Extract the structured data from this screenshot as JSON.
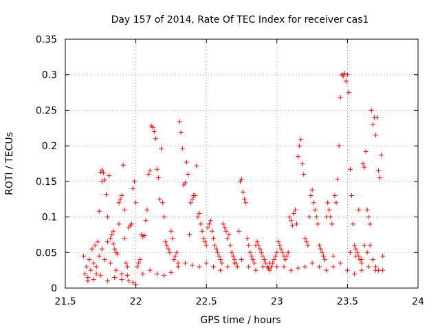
{
  "chart_data": {
    "type": "scatter",
    "title": "Day 157 of 2014, Rate Of TEC Index for receiver cas1",
    "xlabel": "GPS time / hours",
    "ylabel": "ROTI / TECUs",
    "xlim": [
      21.5,
      24
    ],
    "ylim": [
      0,
      0.35
    ],
    "xticks": [
      21.5,
      22,
      22.5,
      23,
      23.5,
      24
    ],
    "xtick_labels": [
      "21.5",
      "22",
      "22.5",
      "23",
      "23.5",
      "24"
    ],
    "yticks": [
      0,
      0.05,
      0.1,
      0.15,
      0.2,
      0.25,
      0.3,
      0.35
    ],
    "ytick_labels": [
      "0",
      "0.05",
      "0.1",
      "0.15",
      "0.2",
      "0.25",
      "0.3",
      "0.35"
    ],
    "grid": true,
    "marker": "+",
    "series": [
      {
        "name": "ROTI",
        "color": "#ff0000",
        "points": [
          [
            21.63,
            0.045
          ],
          [
            21.64,
            0.02
          ],
          [
            21.65,
            0.03
          ],
          [
            21.66,
            0.015
          ],
          [
            21.67,
            0.04
          ],
          [
            21.68,
            0.025
          ],
          [
            21.69,
            0.055
          ],
          [
            21.7,
            0.035
          ],
          [
            21.71,
            0.06
          ],
          [
            21.72,
            0.02
          ],
          [
            21.73,
            0.065
          ],
          [
            21.74,
            0.045
          ],
          [
            21.74,
            0.108
          ],
          [
            21.75,
            0.163
          ],
          [
            21.76,
            0.166
          ],
          [
            21.77,
            0.162
          ],
          [
            21.76,
            0.15
          ],
          [
            21.78,
            0.152
          ],
          [
            21.79,
            0.132
          ],
          [
            21.8,
            0.1
          ],
          [
            21.81,
            0.158
          ],
          [
            21.82,
            0.07
          ],
          [
            21.83,
            0.075
          ],
          [
            21.84,
            0.062
          ],
          [
            21.85,
            0.055
          ],
          [
            21.86,
            0.05
          ],
          [
            21.87,
            0.048
          ],
          [
            21.88,
            0.12
          ],
          [
            21.89,
            0.125
          ],
          [
            21.9,
            0.13
          ],
          [
            21.91,
            0.173
          ],
          [
            21.92,
            0.11
          ],
          [
            21.93,
            0.035
          ],
          [
            21.94,
            0.03
          ],
          [
            21.95,
            0.085
          ],
          [
            21.96,
            0.088
          ],
          [
            21.97,
            0.09
          ],
          [
            21.98,
            0.14
          ],
          [
            21.99,
            0.15
          ],
          [
            22.0,
            0.12
          ],
          [
            21.66,
            0.01
          ],
          [
            21.7,
            0.012
          ],
          [
            21.75,
            0.018
          ],
          [
            21.8,
            0.01
          ],
          [
            21.85,
            0.015
          ],
          [
            21.9,
            0.012
          ],
          [
            21.95,
            0.01
          ],
          [
            21.98,
            0.008
          ],
          [
            22.0,
            0.005
          ],
          [
            21.72,
            0.03
          ],
          [
            21.78,
            0.04
          ],
          [
            21.82,
            0.035
          ],
          [
            21.86,
            0.025
          ],
          [
            21.9,
            0.02
          ],
          [
            21.94,
            0.018
          ],
          [
            21.76,
            0.055
          ],
          [
            21.8,
            0.065
          ],
          [
            21.84,
            0.08
          ],
          [
            21.88,
            0.09
          ],
          [
            21.92,
            0.07
          ],
          [
            22.01,
            0.03
          ],
          [
            22.02,
            0.035
          ],
          [
            22.03,
            0.04
          ],
          [
            22.04,
            0.075
          ],
          [
            22.05,
            0.072
          ],
          [
            22.06,
            0.074
          ],
          [
            22.07,
            0.095
          ],
          [
            22.08,
            0.11
          ],
          [
            22.09,
            0.16
          ],
          [
            22.1,
            0.165
          ],
          [
            22.11,
            0.228
          ],
          [
            22.12,
            0.226
          ],
          [
            22.13,
            0.22
          ],
          [
            22.14,
            0.21
          ],
          [
            22.15,
            0.167
          ],
          [
            22.16,
            0.155
          ],
          [
            22.17,
            0.125
          ],
          [
            22.18,
            0.196
          ],
          [
            22.19,
            0.12
          ],
          [
            22.2,
            0.1
          ],
          [
            22.21,
            0.065
          ],
          [
            22.22,
            0.06
          ],
          [
            22.23,
            0.055
          ],
          [
            22.24,
            0.05
          ],
          [
            22.25,
            0.08
          ],
          [
            22.26,
            0.07
          ],
          [
            22.27,
            0.04
          ],
          [
            22.28,
            0.045
          ],
          [
            22.29,
            0.05
          ],
          [
            22.3,
            0.035
          ],
          [
            22.31,
            0.234
          ],
          [
            22.32,
            0.219
          ],
          [
            22.33,
            0.196
          ],
          [
            22.34,
            0.145
          ],
          [
            22.35,
            0.148
          ],
          [
            22.36,
            0.177
          ],
          [
            22.37,
            0.16
          ],
          [
            22.38,
            0.075
          ],
          [
            22.39,
            0.12
          ],
          [
            22.4,
            0.125
          ],
          [
            22.41,
            0.13
          ],
          [
            22.42,
            0.13
          ],
          [
            22.43,
            0.172
          ],
          [
            22.44,
            0.1
          ],
          [
            22.45,
            0.105
          ],
          [
            22.46,
            0.09
          ],
          [
            22.47,
            0.08
          ],
          [
            22.48,
            0.07
          ],
          [
            22.49,
            0.065
          ],
          [
            22.5,
            0.06
          ],
          [
            22.05,
            0.02
          ],
          [
            22.1,
            0.025
          ],
          [
            22.15,
            0.02
          ],
          [
            22.2,
            0.018
          ],
          [
            22.25,
            0.022
          ],
          [
            22.3,
            0.03
          ],
          [
            22.35,
            0.035
          ],
          [
            22.4,
            0.032
          ],
          [
            22.45,
            0.03
          ],
          [
            22.5,
            0.035
          ],
          [
            22.51,
            0.085
          ],
          [
            22.52,
            0.09
          ],
          [
            22.53,
            0.095
          ],
          [
            22.54,
            0.08
          ],
          [
            22.55,
            0.07
          ],
          [
            22.56,
            0.06
          ],
          [
            22.57,
            0.055
          ],
          [
            22.58,
            0.05
          ],
          [
            22.59,
            0.045
          ],
          [
            22.6,
            0.04
          ],
          [
            22.61,
            0.035
          ],
          [
            22.62,
            0.09
          ],
          [
            22.63,
            0.085
          ],
          [
            22.64,
            0.08
          ],
          [
            22.65,
            0.07
          ],
          [
            22.66,
            0.075
          ],
          [
            22.67,
            0.06
          ],
          [
            22.68,
            0.05
          ],
          [
            22.69,
            0.045
          ],
          [
            22.7,
            0.04
          ],
          [
            22.71,
            0.035
          ],
          [
            22.72,
            0.03
          ],
          [
            22.73,
            0.08
          ],
          [
            22.74,
            0.15
          ],
          [
            22.75,
            0.153
          ],
          [
            22.76,
            0.135
          ],
          [
            22.77,
            0.125
          ],
          [
            22.78,
            0.12
          ],
          [
            22.79,
            0.07
          ],
          [
            22.8,
            0.06
          ],
          [
            22.81,
            0.05
          ],
          [
            22.82,
            0.045
          ],
          [
            22.83,
            0.04
          ],
          [
            22.84,
            0.035
          ],
          [
            22.85,
            0.06
          ],
          [
            22.86,
            0.065
          ],
          [
            22.87,
            0.06
          ],
          [
            22.88,
            0.055
          ],
          [
            22.89,
            0.05
          ],
          [
            22.9,
            0.045
          ],
          [
            22.91,
            0.04
          ],
          [
            22.92,
            0.035
          ],
          [
            22.93,
            0.03
          ],
          [
            22.94,
            0.028
          ],
          [
            22.95,
            0.025
          ],
          [
            22.96,
            0.03
          ],
          [
            22.97,
            0.035
          ],
          [
            22.98,
            0.04
          ],
          [
            22.99,
            0.045
          ],
          [
            23.0,
            0.05
          ],
          [
            22.55,
            0.03
          ],
          [
            22.6,
            0.025
          ],
          [
            22.65,
            0.03
          ],
          [
            22.7,
            0.035
          ],
          [
            22.75,
            0.04
          ],
          [
            22.8,
            0.03
          ],
          [
            22.85,
            0.025
          ],
          [
            22.9,
            0.03
          ],
          [
            22.95,
            0.035
          ],
          [
            23.0,
            0.03
          ],
          [
            23.01,
            0.065
          ],
          [
            23.02,
            0.06
          ],
          [
            23.03,
            0.055
          ],
          [
            23.04,
            0.05
          ],
          [
            23.05,
            0.045
          ],
          [
            23.06,
            0.04
          ],
          [
            23.07,
            0.045
          ],
          [
            23.08,
            0.05
          ],
          [
            23.09,
            0.1
          ],
          [
            23.1,
            0.095
          ],
          [
            23.11,
            0.088
          ],
          [
            23.12,
            0.105
          ],
          [
            23.13,
            0.11
          ],
          [
            23.14,
            0.09
          ],
          [
            23.15,
            0.185
          ],
          [
            23.16,
            0.2
          ],
          [
            23.17,
            0.209
          ],
          [
            23.18,
            0.175
          ],
          [
            23.19,
            0.16
          ],
          [
            23.2,
            0.07
          ],
          [
            23.21,
            0.065
          ],
          [
            23.22,
            0.06
          ],
          [
            23.23,
            0.1
          ],
          [
            23.24,
            0.13
          ],
          [
            23.25,
            0.138
          ],
          [
            23.26,
            0.12
          ],
          [
            23.27,
            0.11
          ],
          [
            23.28,
            0.1
          ],
          [
            23.29,
            0.09
          ],
          [
            23.3,
            0.06
          ],
          [
            23.31,
            0.055
          ],
          [
            23.32,
            0.05
          ],
          [
            23.33,
            0.045
          ],
          [
            23.34,
            0.04
          ],
          [
            23.35,
            0.1
          ],
          [
            23.36,
            0.12
          ],
          [
            23.37,
            0.11
          ],
          [
            23.38,
            0.1
          ],
          [
            23.39,
            0.09
          ],
          [
            23.4,
            0.045
          ],
          [
            23.41,
            0.13
          ],
          [
            23.42,
            0.12
          ],
          [
            23.43,
            0.153
          ],
          [
            23.44,
            0.2
          ],
          [
            23.45,
            0.268
          ],
          [
            23.46,
            0.3
          ],
          [
            23.47,
            0.298
          ],
          [
            23.48,
            0.302
          ],
          [
            23.49,
            0.291
          ],
          [
            23.5,
            0.3
          ],
          [
            23.51,
            0.275
          ],
          [
            23.52,
            0.167
          ],
          [
            23.53,
            0.13
          ],
          [
            23.54,
            0.09
          ],
          [
            23.55,
            0.06
          ],
          [
            23.56,
            0.055
          ],
          [
            23.57,
            0.05
          ],
          [
            23.58,
            0.045
          ],
          [
            23.59,
            0.04
          ],
          [
            23.6,
            0.035
          ],
          [
            23.61,
            0.175
          ],
          [
            23.62,
            0.17
          ],
          [
            23.63,
            0.192
          ],
          [
            23.64,
            0.11
          ],
          [
            23.65,
            0.1
          ],
          [
            23.66,
            0.09
          ],
          [
            23.67,
            0.25
          ],
          [
            23.68,
            0.23
          ],
          [
            23.69,
            0.24
          ],
          [
            23.7,
            0.215
          ],
          [
            23.71,
            0.24
          ],
          [
            23.72,
            0.165
          ],
          [
            23.73,
            0.155
          ],
          [
            23.74,
            0.187
          ],
          [
            23.75,
            0.045
          ],
          [
            23.72,
            0.025
          ],
          [
            23.7,
            0.03
          ],
          [
            23.68,
            0.04
          ],
          [
            23.66,
            0.06
          ],
          [
            23.64,
            0.05
          ],
          [
            23.05,
            0.03
          ],
          [
            23.1,
            0.025
          ],
          [
            23.15,
            0.028
          ],
          [
            23.2,
            0.03
          ],
          [
            23.25,
            0.035
          ],
          [
            23.3,
            0.03
          ],
          [
            23.35,
            0.025
          ],
          [
            23.4,
            0.03
          ],
          [
            23.45,
            0.035
          ],
          [
            23.5,
            0.025
          ],
          [
            23.55,
            0.02
          ],
          [
            23.6,
            0.025
          ],
          [
            23.65,
            0.03
          ],
          [
            23.7,
            0.025
          ],
          [
            23.75,
            0.025
          ],
          [
            23.52,
            0.05
          ],
          [
            23.56,
            0.045
          ],
          [
            23.6,
            0.04
          ],
          [
            23.62,
            0.06
          ],
          [
            23.58,
            0.11
          ]
        ]
      }
    ]
  }
}
